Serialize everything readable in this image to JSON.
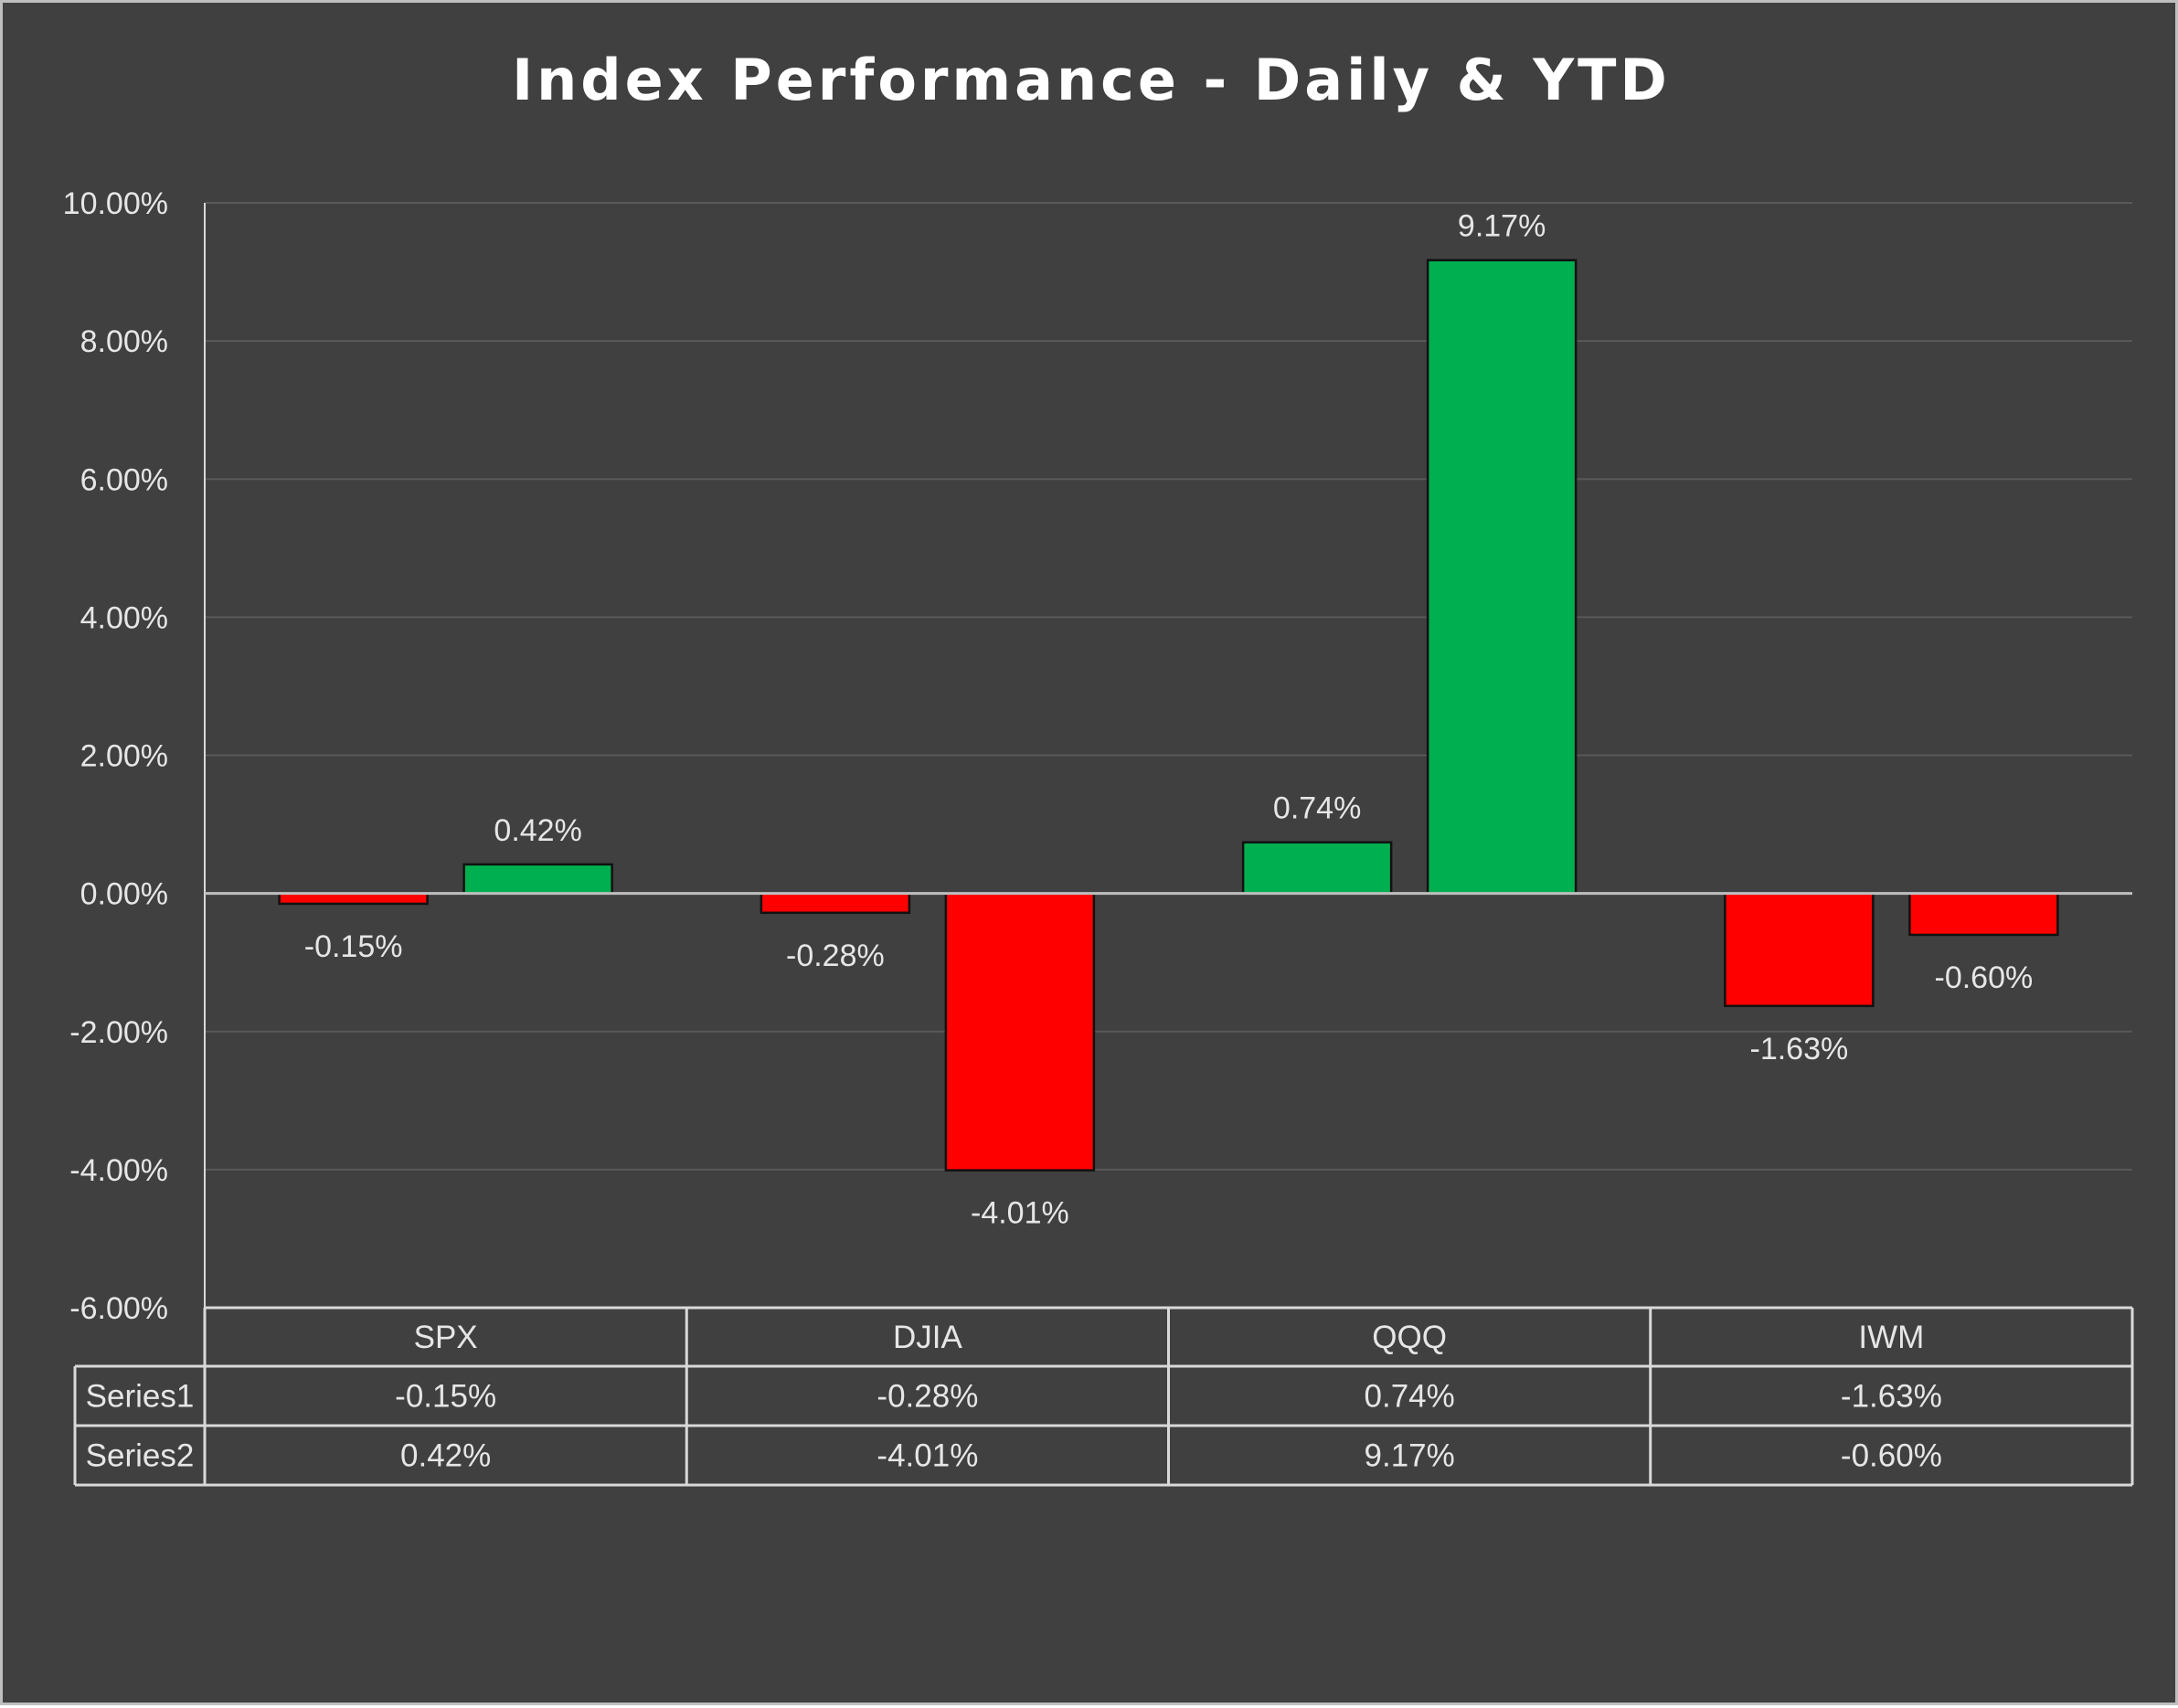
{
  "chart_data": {
    "type": "bar",
    "title": "Index Performance - Daily & YTD",
    "categories": [
      "SPX",
      "DJIA",
      "QQQ",
      "IWM"
    ],
    "series": [
      {
        "name": "Series1",
        "values": [
          -0.15,
          -0.28,
          0.74,
          -1.63
        ],
        "labels": [
          "-0.15%",
          "-0.28%",
          "0.74%",
          "-1.63%"
        ]
      },
      {
        "name": "Series2",
        "values": [
          0.42,
          -4.01,
          9.17,
          -0.6
        ],
        "labels": [
          "0.42%",
          "-4.01%",
          "9.17%",
          "-0.60%"
        ]
      }
    ],
    "ylim": [
      -6,
      10
    ],
    "yticks": [
      10,
      8,
      6,
      4,
      2,
      0,
      -2,
      -4,
      -6
    ],
    "ytick_labels": [
      "10.00%",
      "8.00%",
      "6.00%",
      "4.00%",
      "2.00%",
      "0.00%",
      "-2.00%",
      "-4.00%",
      "-6.00%"
    ],
    "grid": true,
    "legend": "data-table-below",
    "colors": {
      "positive": "#00b050",
      "negative": "#ff0000",
      "background": "#404040"
    }
  }
}
